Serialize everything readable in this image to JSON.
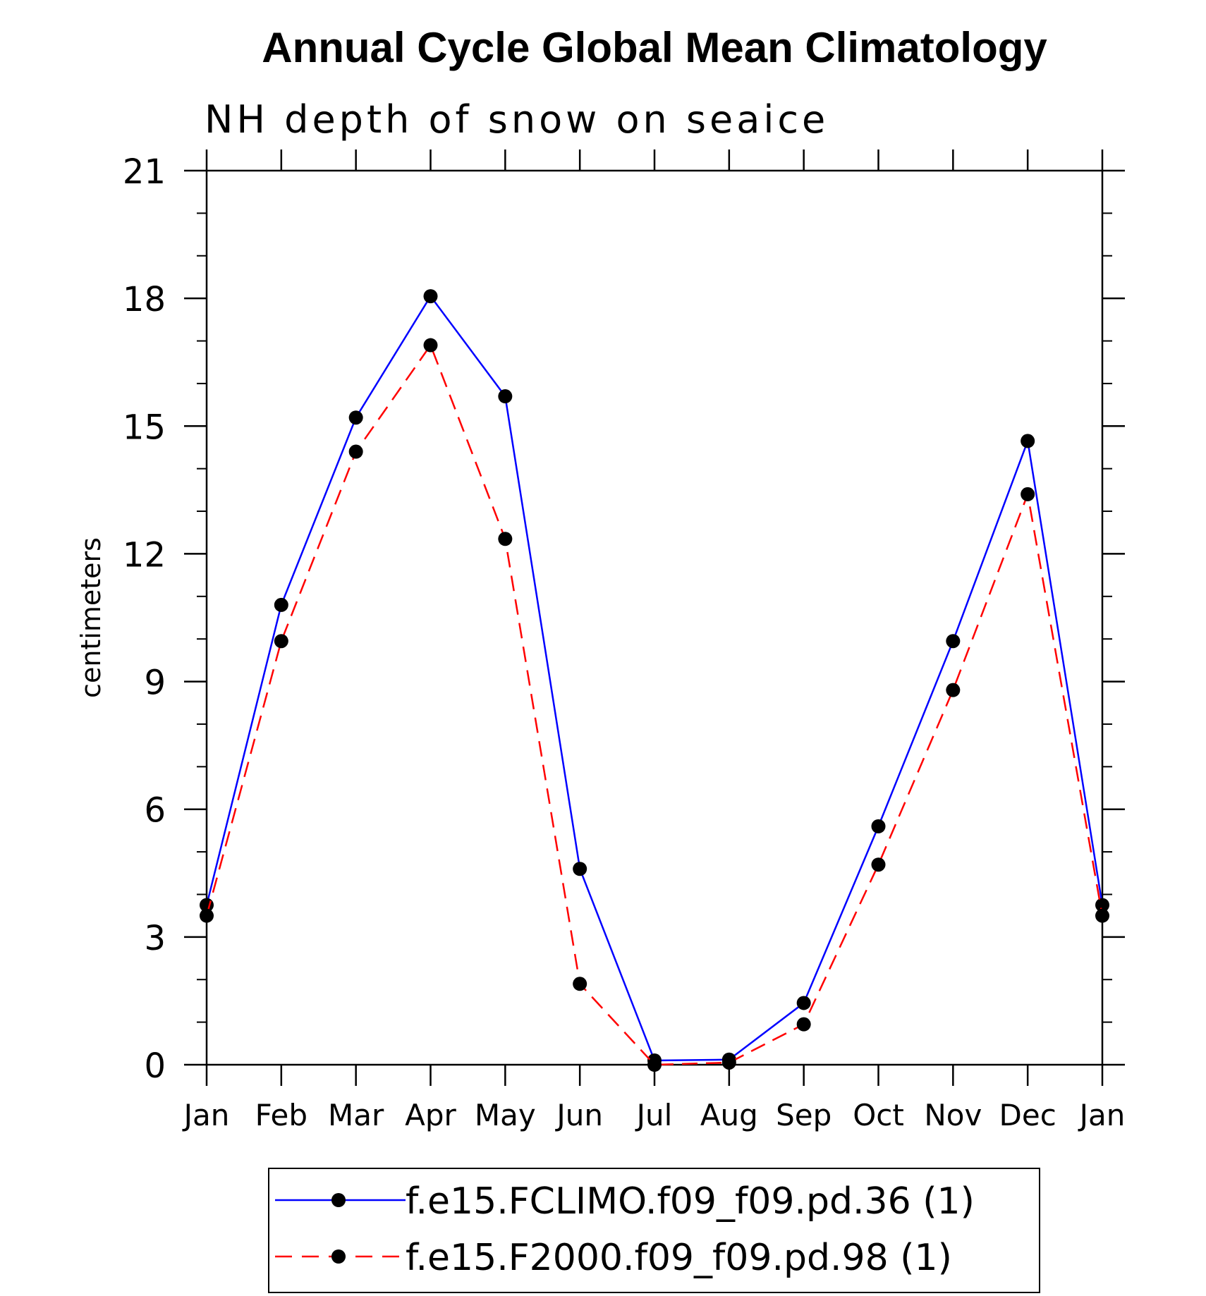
{
  "chart_data": {
    "type": "line",
    "title": "Annual Cycle Global Mean Climatology",
    "subtitle": "NH depth of snow on seaice",
    "xlabel": "",
    "ylabel": "centimeters",
    "categories": [
      "Jan",
      "Feb",
      "Mar",
      "Apr",
      "May",
      "Jun",
      "Jul",
      "Aug",
      "Sep",
      "Oct",
      "Nov",
      "Dec",
      "Jan"
    ],
    "ylim": [
      0,
      21
    ],
    "yticks": [
      "0",
      "3",
      "6",
      "9",
      "12",
      "15",
      "18",
      "21"
    ],
    "series": [
      {
        "name": "f.e15.FCLIMO.f09_f09.pd.36 (1)",
        "color": "#0000ff",
        "dash": "solid",
        "values": [
          3.75,
          10.8,
          15.2,
          18.05,
          15.7,
          4.6,
          0.1,
          0.12,
          1.45,
          5.6,
          9.95,
          14.65,
          3.75
        ]
      },
      {
        "name": "f.e15.F2000.f09_f09.pd.98 (1)",
        "color": "#ff0000",
        "dash": "dashed",
        "values": [
          3.5,
          9.95,
          14.4,
          16.9,
          12.35,
          1.9,
          0.0,
          0.05,
          0.95,
          4.7,
          8.8,
          13.4,
          3.5
        ]
      }
    ],
    "legend_position": "bottom"
  }
}
